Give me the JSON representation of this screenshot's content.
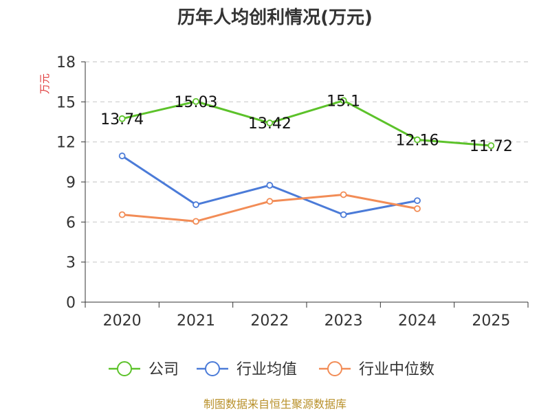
{
  "chart_data": {
    "type": "line",
    "title": "历年人均创利情况(万元)",
    "ylabel": "万元",
    "xlabel": "",
    "categories": [
      "2020",
      "2021",
      "2022",
      "2023",
      "2024",
      "2025"
    ],
    "ylim": [
      0,
      18
    ],
    "yticks": [
      0,
      3,
      6,
      9,
      12,
      15,
      18
    ],
    "grid": true,
    "legend_position": "bottom",
    "series": [
      {
        "name": "公司",
        "color": "#5cc22a",
        "values": [
          13.74,
          15.03,
          13.42,
          15.1,
          12.16,
          11.72
        ],
        "labels": [
          "13.74",
          "15.03",
          "13.42",
          "15.1",
          "12.16",
          "11.72"
        ]
      },
      {
        "name": "行业均值",
        "color": "#4b7bd8",
        "values": [
          10.95,
          7.3,
          8.75,
          6.55,
          7.6,
          null
        ]
      },
      {
        "name": "行业中位数",
        "color": "#f28c56",
        "values": [
          6.55,
          6.05,
          7.55,
          8.05,
          7.0,
          null
        ]
      }
    ]
  },
  "source": "制图数据来自恒生聚源数据库"
}
